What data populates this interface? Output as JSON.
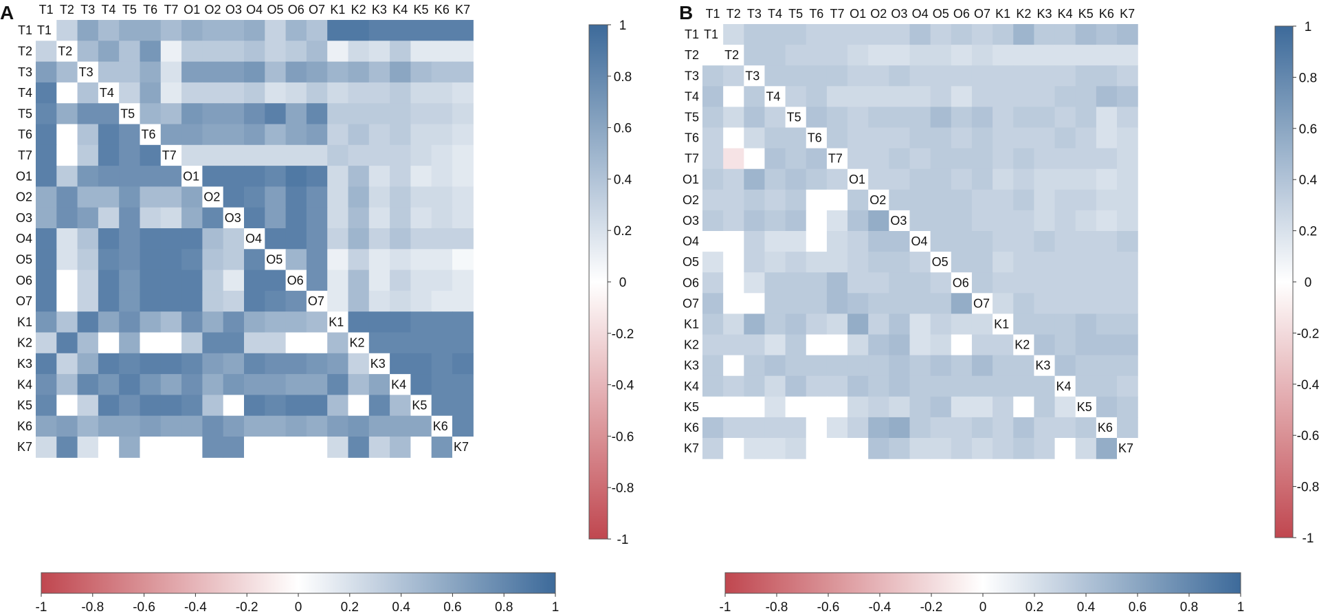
{
  "chart_data": [
    {
      "panel": "A",
      "type": "heatmap",
      "row_labels": [
        "T1",
        "T2",
        "T3",
        "T4",
        "T5",
        "T6",
        "T7",
        "O1",
        "O2",
        "O3",
        "O4",
        "O5",
        "O6",
        "O7",
        "K1",
        "K2",
        "K3",
        "K4",
        "K5",
        "K6",
        "K7"
      ],
      "col_labels": [
        "T1",
        "T2",
        "T3",
        "T4",
        "T5",
        "T6",
        "T7",
        "O1",
        "O2",
        "O3",
        "O4",
        "O5",
        "O6",
        "O7",
        "K1",
        "K2",
        "K3",
        "K4",
        "K5",
        "K6",
        "K7"
      ],
      "values": [
        [
          1,
          0.3,
          0.6,
          0.45,
          0.55,
          0.55,
          0.45,
          0.55,
          0.5,
          0.5,
          0.55,
          0.3,
          0.5,
          0.4,
          0.9,
          0.9,
          0.85,
          0.85,
          0.85,
          0.85,
          0.85
        ],
        [
          0.3,
          1,
          0.45,
          0.6,
          0.4,
          0.7,
          0.1,
          0.35,
          0.35,
          0.35,
          0.4,
          0.3,
          0.35,
          0.45,
          0.1,
          0.25,
          0.2,
          0.35,
          0.15,
          0.15,
          0.15
        ],
        [
          0.65,
          0.45,
          1,
          0.4,
          0.4,
          0.55,
          0.2,
          0.65,
          0.65,
          0.65,
          0.7,
          0.45,
          0.65,
          0.6,
          0.5,
          0.55,
          0.45,
          0.6,
          0.45,
          0.4,
          0.4
        ],
        [
          0.85,
          0,
          0.4,
          1,
          0.3,
          0.6,
          0.15,
          0.3,
          0.3,
          0.3,
          0.35,
          0.2,
          0.25,
          0.35,
          0.25,
          0.3,
          0.3,
          0.35,
          0.25,
          0.25,
          0.2
        ],
        [
          0.8,
          0.55,
          0.75,
          0.75,
          1,
          0.5,
          0.45,
          0.7,
          0.65,
          0.65,
          0.75,
          0.85,
          0.6,
          0.8,
          0.35,
          0.35,
          0.35,
          0.35,
          0.3,
          0.3,
          0.25
        ],
        [
          0.85,
          0,
          0.4,
          0.85,
          0.75,
          1,
          0.65,
          0.65,
          0.6,
          0.6,
          0.65,
          0.5,
          0.6,
          0.65,
          0.3,
          0.4,
          0.3,
          0.35,
          0.25,
          0.25,
          0.2
        ],
        [
          0.85,
          0,
          0.35,
          0.85,
          0.75,
          0.85,
          1,
          0.25,
          0.25,
          0.25,
          0.25,
          0.25,
          0.25,
          0.25,
          0.35,
          0.3,
          0.3,
          0.3,
          0.25,
          0.2,
          0.15
        ],
        [
          0.85,
          0.35,
          0.7,
          0.75,
          0.75,
          0.75,
          0.75,
          1,
          0.85,
          0.85,
          0.85,
          0.8,
          0.9,
          0.85,
          0.25,
          0.45,
          0.2,
          0.3,
          0.15,
          0.2,
          0.15
        ],
        [
          0.55,
          0.75,
          0.5,
          0.5,
          0.7,
          0.45,
          0.45,
          0.6,
          1,
          0.85,
          0.8,
          0.65,
          0.85,
          0.75,
          0.25,
          0.5,
          0.25,
          0.35,
          0.25,
          0.25,
          0.2
        ],
        [
          0.55,
          0.75,
          0.65,
          0.3,
          0.75,
          0.3,
          0.25,
          0.55,
          0.8,
          1,
          0.85,
          0.65,
          0.85,
          0.75,
          0.25,
          0.45,
          0.2,
          0.35,
          0.2,
          0.25,
          0.2
        ],
        [
          0.85,
          0.2,
          0.4,
          0.85,
          0.75,
          0.85,
          0.85,
          0.85,
          0.45,
          0.35,
          1,
          0.85,
          0.85,
          0.75,
          0.3,
          0.5,
          0.3,
          0.4,
          0.3,
          0.3,
          0.3
        ],
        [
          0.85,
          0.2,
          0.35,
          0.8,
          0.75,
          0.85,
          0.85,
          0.8,
          0.4,
          0.35,
          0.8,
          1,
          0.5,
          0.75,
          0.1,
          0.3,
          0.15,
          0.2,
          0.15,
          0.15,
          0.05
        ],
        [
          0.85,
          0,
          0.3,
          0.85,
          0.7,
          0.85,
          0.85,
          0.85,
          0.35,
          0.15,
          0.85,
          0.85,
          1,
          0.75,
          0.15,
          0.45,
          0.15,
          0.3,
          0.2,
          0.2,
          0.15
        ],
        [
          0.85,
          0,
          0.3,
          0.85,
          0.7,
          0.85,
          0.85,
          0.85,
          0.35,
          0.3,
          0.85,
          0.8,
          0.75,
          1,
          0.15,
          0.45,
          0.2,
          0.25,
          0.2,
          0.15,
          0.15
        ],
        [
          0.7,
          0.4,
          0.85,
          0.6,
          0.75,
          0.55,
          0.45,
          0.75,
          0.55,
          0.75,
          0.55,
          0.5,
          0.5,
          0.45,
          1,
          0.85,
          0.85,
          0.85,
          0.8,
          0.8,
          0.8
        ],
        [
          0.3,
          0.85,
          0.45,
          0,
          0.55,
          0,
          0,
          0.35,
          0.8,
          0.8,
          0.3,
          0.3,
          0,
          0,
          0.45,
          1,
          0.8,
          0.8,
          0.8,
          0.8,
          0.8
        ],
        [
          0.85,
          0.3,
          0.55,
          0.85,
          0.8,
          0.85,
          0.85,
          0.8,
          0.65,
          0.6,
          0.8,
          0.75,
          0.75,
          0.7,
          0.65,
          0.3,
          1,
          0.85,
          0.85,
          0.8,
          0.85
        ],
        [
          0.75,
          0.45,
          0.8,
          0.7,
          0.85,
          0.7,
          0.6,
          0.75,
          0.55,
          0.7,
          0.65,
          0.65,
          0.6,
          0.6,
          0.8,
          0.45,
          0.6,
          1,
          0.85,
          0.8,
          0.8
        ],
        [
          0.8,
          0,
          0.3,
          0.85,
          0.75,
          0.85,
          0.85,
          0.8,
          0.4,
          0,
          0.85,
          0.8,
          0.85,
          0.85,
          0.45,
          0,
          0.8,
          0.45,
          1,
          0.8,
          0.8
        ],
        [
          0.6,
          0.65,
          0.5,
          0.6,
          0.6,
          0.65,
          0.6,
          0.6,
          0.75,
          0.65,
          0.55,
          0.55,
          0.6,
          0.55,
          0.65,
          0.7,
          0.6,
          0.6,
          0.6,
          1,
          0.8
        ],
        [
          0.25,
          0.8,
          0.2,
          0,
          0.55,
          0,
          0,
          0,
          0.75,
          0.75,
          0,
          0,
          0,
          0,
          0.25,
          0.8,
          0.3,
          0.45,
          0,
          0.7,
          1
        ]
      ],
      "diagonal_labels": [
        "T1",
        "T2",
        "T3",
        "T4",
        "T5",
        "T6",
        "T7",
        "O1",
        "O2",
        "O3",
        "O4",
        "O5",
        "O6",
        "O7",
        "K1",
        "K2",
        "K3",
        "K4",
        "K5",
        "K6",
        "K7"
      ],
      "colorbar": {
        "range": [
          -1,
          1
        ],
        "vertical_ticks": [
          "1",
          "0.8",
          "0.6",
          "0.4",
          "0.2",
          "0",
          "-0.2",
          "-0.4",
          "-0.6",
          "-0.8",
          "-1"
        ],
        "horizontal_ticks": [
          "-1",
          "-0.8",
          "-0.6",
          "-0.4",
          "-0.2",
          "0",
          "0.2",
          "0.4",
          "0.6",
          "0.8",
          "1"
        ]
      }
    },
    {
      "panel": "B",
      "type": "heatmap",
      "row_labels": [
        "T1",
        "T2",
        "T3",
        "T4",
        "T5",
        "T6",
        "T7",
        "O1",
        "O2",
        "O3",
        "O4",
        "O5",
        "O6",
        "O7",
        "K1",
        "K2",
        "K3",
        "K4",
        "K5",
        "K6",
        "K7"
      ],
      "col_labels": [
        "T1",
        "T2",
        "T3",
        "T4",
        "T5",
        "T6",
        "T7",
        "O1",
        "O2",
        "O3",
        "O4",
        "O5",
        "O6",
        "O7",
        "K1",
        "K2",
        "K3",
        "K4",
        "K5",
        "K6",
        "K7"
      ],
      "values": [
        [
          1,
          0.25,
          0.35,
          0.35,
          0.35,
          0.3,
          0.3,
          0.3,
          0.3,
          0.3,
          0.4,
          0.3,
          0.35,
          0.3,
          0.35,
          0.5,
          0.35,
          0.35,
          0.45,
          0.4,
          0.45
        ],
        [
          0,
          1,
          0.35,
          0.35,
          0.3,
          0.3,
          0.3,
          0.25,
          0.2,
          0.2,
          0.25,
          0.25,
          0.2,
          0.25,
          0.2,
          0.2,
          0.2,
          0.2,
          0.2,
          0.2,
          0.2
        ],
        [
          0.35,
          0.3,
          1,
          0.35,
          0.35,
          0.35,
          0.35,
          0.3,
          0.3,
          0.35,
          0.3,
          0.3,
          0.3,
          0.3,
          0.3,
          0.3,
          0.3,
          0.3,
          0.35,
          0.35,
          0.3
        ],
        [
          0.4,
          0,
          0.35,
          1,
          0.3,
          0.35,
          0.25,
          0.25,
          0.25,
          0.25,
          0.25,
          0.3,
          0.2,
          0.3,
          0.3,
          0.3,
          0.3,
          0.35,
          0.35,
          0.45,
          0.4
        ],
        [
          0.35,
          0.25,
          0.4,
          0.3,
          1,
          0.4,
          0.35,
          0.3,
          0.35,
          0.35,
          0.35,
          0.45,
          0.35,
          0.4,
          0.3,
          0.35,
          0.35,
          0.3,
          0.35,
          0.2,
          0.3
        ],
        [
          0.3,
          0,
          0.25,
          0.35,
          0.35,
          1,
          0.35,
          0.3,
          0.3,
          0.3,
          0.35,
          0.35,
          0.3,
          0.35,
          0.3,
          0.3,
          0.3,
          0.35,
          0.3,
          0.2,
          0.25
        ],
        [
          0.3,
          -0.15,
          0,
          0.4,
          0.35,
          0.4,
          1,
          0.3,
          0.3,
          0.35,
          0.3,
          0.35,
          0.35,
          0.35,
          0.3,
          0.35,
          0.3,
          0.3,
          0.3,
          0.3,
          0.25
        ],
        [
          0.35,
          0.3,
          0.5,
          0.35,
          0.4,
          0.35,
          0.3,
          1,
          0.3,
          0.3,
          0.35,
          0.35,
          0.3,
          0.35,
          0.25,
          0.3,
          0.25,
          0.25,
          0.25,
          0.2,
          0.25
        ],
        [
          0.3,
          0.3,
          0.35,
          0.3,
          0.35,
          0,
          0,
          0.35,
          1,
          0.35,
          0.35,
          0.35,
          0.35,
          0.3,
          0.3,
          0.35,
          0.25,
          0.3,
          0.3,
          0.25,
          0.25
        ],
        [
          0.35,
          0.3,
          0.4,
          0.35,
          0.4,
          0,
          0.2,
          0.4,
          0.55,
          1,
          0.35,
          0.35,
          0.35,
          0.3,
          0.3,
          0.3,
          0.25,
          0.3,
          0.25,
          0.2,
          0.25
        ],
        [
          0,
          0,
          0.3,
          0.2,
          0.2,
          0,
          0.25,
          0.3,
          0.4,
          0.4,
          1,
          0.35,
          0.35,
          0.35,
          0.3,
          0.3,
          0.35,
          0.3,
          0.3,
          0.3,
          0.35
        ],
        [
          0.2,
          0,
          0.3,
          0.25,
          0.3,
          0.25,
          0.25,
          0.3,
          0.35,
          0.35,
          0.3,
          1,
          0.35,
          0.35,
          0.25,
          0.3,
          0.3,
          0.3,
          0.3,
          0.3,
          0.3
        ],
        [
          0.3,
          0,
          0.2,
          0.35,
          0.35,
          0.35,
          0.45,
          0.3,
          0.3,
          0.35,
          0.35,
          0.3,
          1,
          0.35,
          0.3,
          0.3,
          0.3,
          0.3,
          0.3,
          0.3,
          0.3
        ],
        [
          0.4,
          0,
          0,
          0.35,
          0.35,
          0.35,
          0.45,
          0.4,
          0.35,
          0.35,
          0.35,
          0.35,
          0.55,
          1,
          0.25,
          0.35,
          0.3,
          0.3,
          0.3,
          0.3,
          0.3
        ],
        [
          0.35,
          0.25,
          0.5,
          0.35,
          0.4,
          0.3,
          0.25,
          0.55,
          0.3,
          0.4,
          0.2,
          0.3,
          0.25,
          0.25,
          1,
          0.35,
          0.35,
          0.35,
          0.4,
          0.35,
          0.35
        ],
        [
          0.3,
          0.3,
          0.3,
          0.2,
          0.35,
          0,
          0,
          0.25,
          0.4,
          0.45,
          0.2,
          0.25,
          0,
          0.3,
          0.3,
          1,
          0.4,
          0.35,
          0.4,
          0.4,
          0.4
        ],
        [
          0.35,
          0,
          0.35,
          0.4,
          0.35,
          0.35,
          0.35,
          0.35,
          0.35,
          0.4,
          0.35,
          0.4,
          0.35,
          0.45,
          0.35,
          0.35,
          1,
          0.4,
          0.35,
          0.35,
          0.35
        ],
        [
          0.35,
          0.3,
          0.35,
          0.25,
          0.4,
          0.3,
          0.3,
          0.4,
          0.35,
          0.4,
          0.35,
          0.35,
          0.35,
          0.35,
          0.35,
          0.35,
          0.35,
          1,
          0.35,
          0.35,
          0.3
        ],
        [
          0,
          0,
          0,
          0.2,
          0,
          0,
          0,
          0.25,
          0.3,
          0.25,
          0.35,
          0.4,
          0.2,
          0.2,
          0.3,
          0,
          0.35,
          0.2,
          1,
          0.4,
          0.35
        ],
        [
          0.4,
          0.3,
          0.3,
          0.3,
          0.3,
          0,
          0.2,
          0.3,
          0.5,
          0.55,
          0.35,
          0.3,
          0.3,
          0.35,
          0.3,
          0.4,
          0.3,
          0.3,
          0.35,
          1,
          0.35
        ],
        [
          0.3,
          0,
          0.2,
          0.2,
          0.25,
          0,
          0,
          0,
          0.4,
          0.35,
          0.25,
          0.25,
          0.3,
          0.25,
          0.3,
          0.35,
          0.3,
          0,
          0.25,
          0.55,
          1
        ]
      ],
      "diagonal_labels": [
        "T1",
        "T2",
        "T3",
        "T4",
        "T5",
        "T6",
        "T7",
        "O1",
        "O2",
        "O3",
        "O4",
        "O5",
        "O6",
        "O7",
        "K1",
        "K2",
        "K3",
        "K4",
        "K5",
        "K6",
        "K7"
      ],
      "colorbar": {
        "range": [
          -1,
          1
        ],
        "vertical_ticks": [
          "1",
          "0.8",
          "0.6",
          "0.4",
          "0.2",
          "0",
          "-0.2",
          "-0.4",
          "-0.6",
          "-0.8",
          "-1"
        ],
        "horizontal_ticks": [
          "-1",
          "-0.8",
          "-0.6",
          "-0.4",
          "-0.2",
          "0",
          "0.2",
          "0.4",
          "0.6",
          "0.8",
          "1"
        ]
      }
    }
  ],
  "colors": {
    "negative": "#c0474f",
    "zero": "#ffffff",
    "positive": "#3d6a9a"
  }
}
